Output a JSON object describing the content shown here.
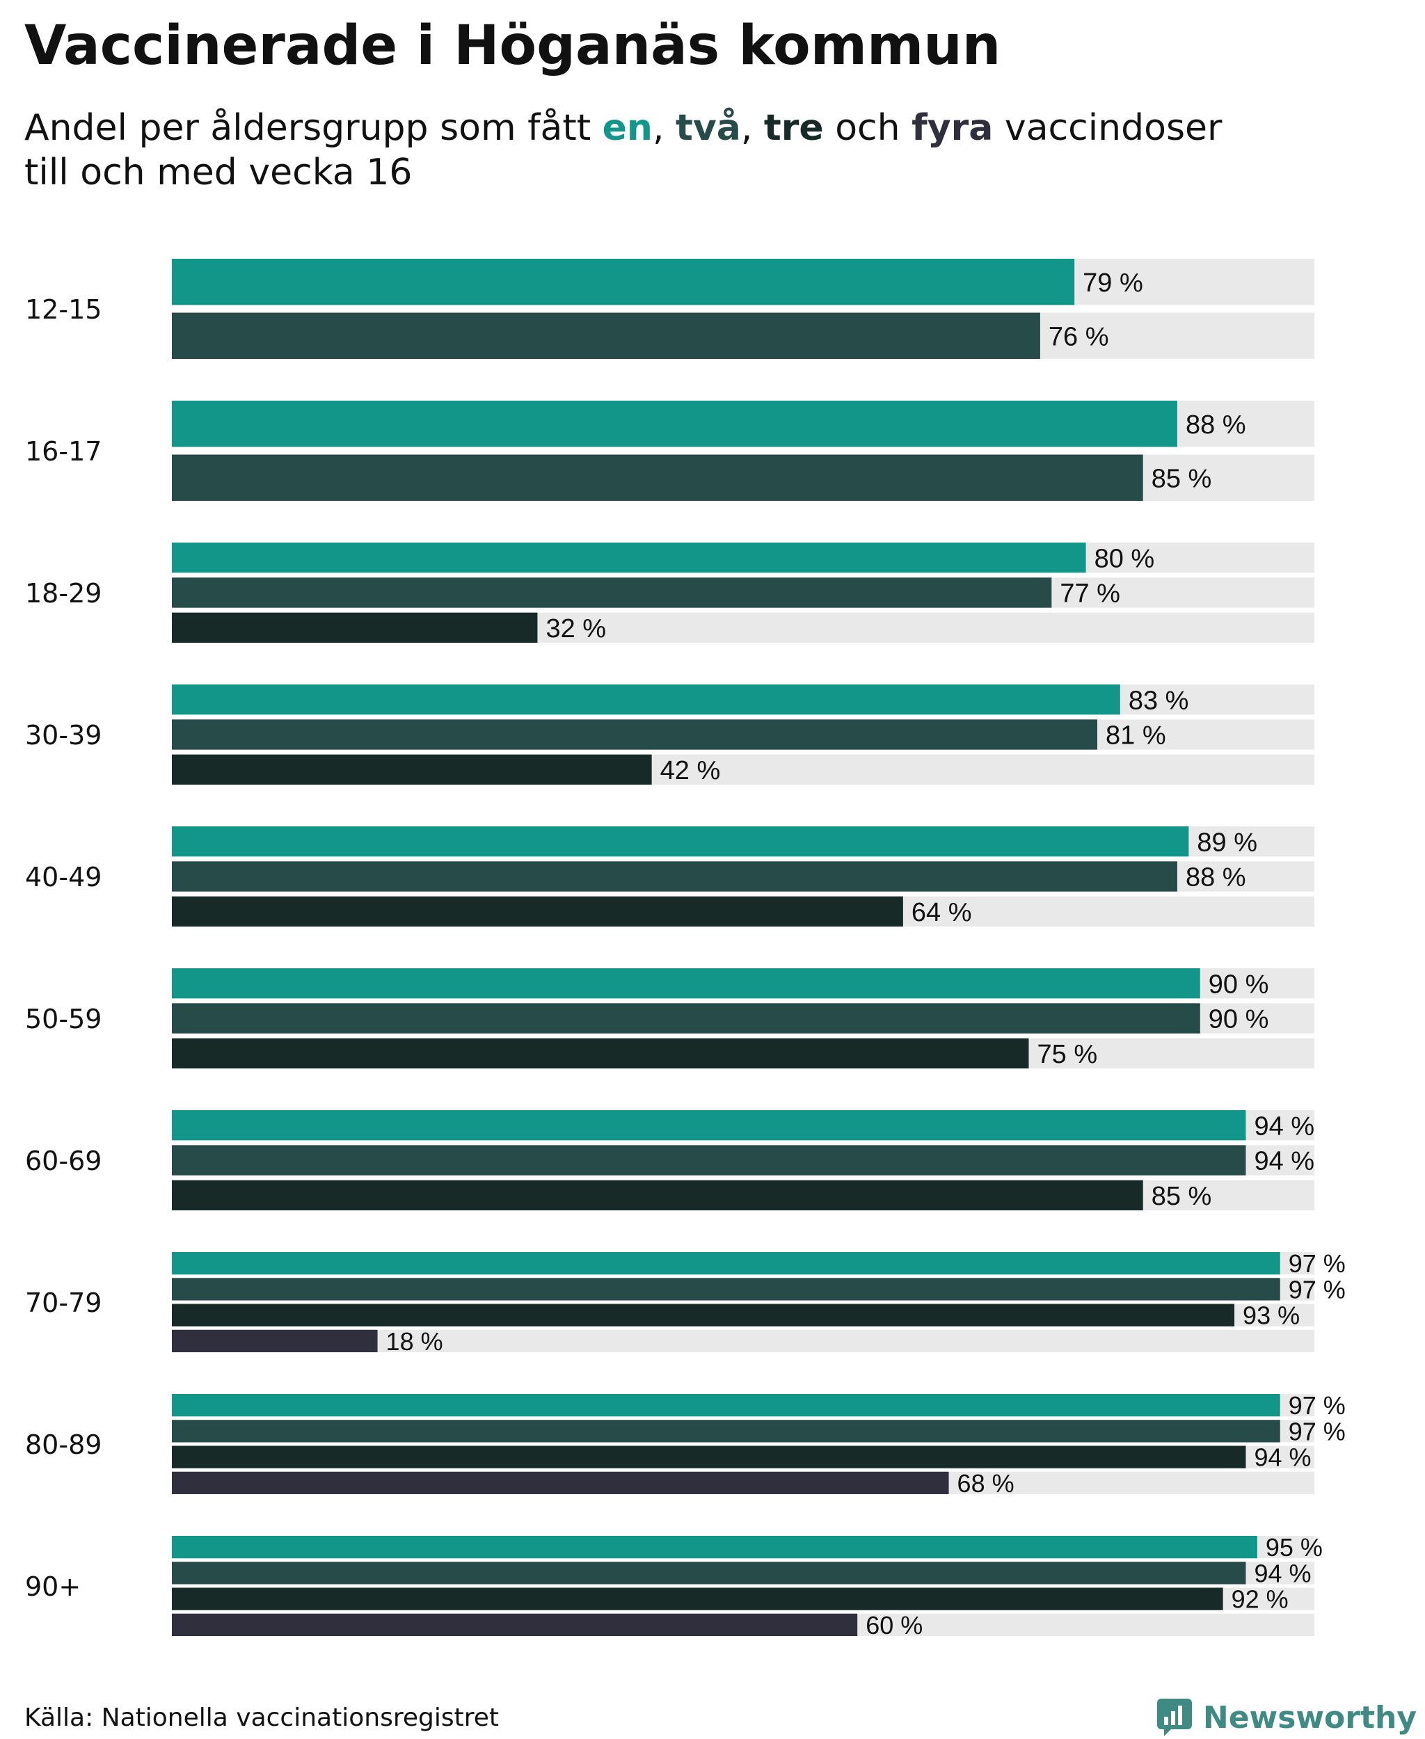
{
  "title": "Vaccinerade i Höganäs kommun",
  "subtitle": {
    "prefix": "Andel per åldersgrupp som fått ",
    "k1": "en",
    "sep1": ", ",
    "k2": "två",
    "sep2": ", ",
    "k3": "tre",
    "sep3": " och ",
    "k4": "fyra",
    "suffix": " vaccindoser",
    "line2": "till och med vecka 16"
  },
  "source": "Källa: Nationella vaccinationsregistret",
  "brand": "Newsworthy",
  "colors": {
    "dose1": "#13968a",
    "dose2": "#264b48",
    "dose3": "#182a27",
    "dose4": "#302f3d",
    "track": "#e9e9e9",
    "brand": "#3f8a82"
  },
  "chart_data": {
    "type": "bar",
    "orientation": "horizontal",
    "xlim": [
      0,
      100
    ],
    "value_suffix": " %",
    "categories": [
      "12-15",
      "16-17",
      "18-29",
      "30-39",
      "40-49",
      "50-59",
      "60-69",
      "70-79",
      "80-89",
      "90+"
    ],
    "series": [
      {
        "name": "en",
        "values": [
          79,
          88,
          80,
          83,
          89,
          90,
          94,
          97,
          97,
          95
        ]
      },
      {
        "name": "två",
        "values": [
          76,
          85,
          77,
          81,
          88,
          90,
          94,
          97,
          97,
          94
        ]
      },
      {
        "name": "tre",
        "values": [
          null,
          null,
          32,
          42,
          64,
          75,
          85,
          93,
          94,
          92
        ]
      },
      {
        "name": "fyra",
        "values": [
          null,
          null,
          null,
          null,
          null,
          null,
          null,
          18,
          68,
          60
        ]
      }
    ]
  }
}
